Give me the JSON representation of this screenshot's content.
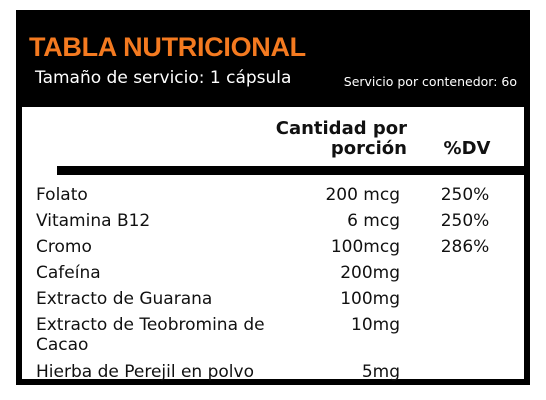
{
  "header": {
    "title": "TABLA NUTRICIONAL",
    "serving_size": "Tamaño de  servicio: 1 cápsula",
    "servings_per_container": "Servicio por contenedor: 6o"
  },
  "columns": {
    "amount_line1": "Cantidad por",
    "amount_line2": "porción",
    "dv": "%DV"
  },
  "rows": [
    {
      "name": "Folato",
      "amount": "200 mcg",
      "dv": "250%"
    },
    {
      "name": "Vitamina B12",
      "amount": "6 mcg",
      "dv": "250%"
    },
    {
      "name": "Cromo",
      "amount": "100mcg",
      "dv": "286%"
    },
    {
      "name": "Cafeína",
      "amount": "200mg",
      "dv": ""
    },
    {
      "name": "Extracto de Guarana",
      "amount": "100mg",
      "dv": ""
    },
    {
      "name": "Extracto de Teobromina de Cacao",
      "amount": "10mg",
      "dv": ""
    },
    {
      "name": "Hierba de Perejil en polvo",
      "amount": "5mg",
      "dv": ""
    }
  ],
  "colors": {
    "title_orange": "#f47a20",
    "panel_black": "#000000",
    "background_white": "#ffffff"
  }
}
